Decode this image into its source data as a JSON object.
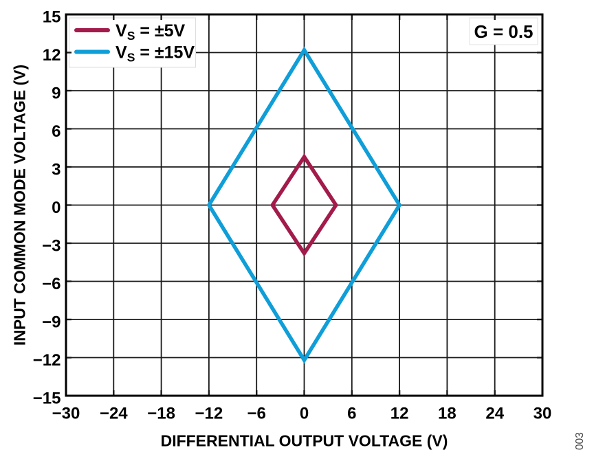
{
  "figure": {
    "background": "#ffffff",
    "figure_number": "003"
  },
  "chart_data": {
    "type": "line",
    "title": "",
    "xlabel": "DIFFERENTIAL OUTPUT VOLTAGE (V)",
    "ylabel": "INPUT COMMON MODE VOLTAGE (V)",
    "xlim": [
      -30,
      30
    ],
    "ylim": [
      -15,
      15
    ],
    "grid": true,
    "legend_position": "top-left",
    "annotation": "G = 0.5",
    "xticks": [
      {
        "v": -30,
        "label": "−30"
      },
      {
        "v": -24,
        "label": "−24"
      },
      {
        "v": -18,
        "label": "−18"
      },
      {
        "v": -12,
        "label": "−12"
      },
      {
        "v": -6,
        "label": "−6"
      },
      {
        "v": 0,
        "label": "0"
      },
      {
        "v": 6,
        "label": "6"
      },
      {
        "v": 12,
        "label": "12"
      },
      {
        "v": 18,
        "label": "18"
      },
      {
        "v": 24,
        "label": "24"
      },
      {
        "v": 30,
        "label": "30"
      }
    ],
    "yticks": [
      {
        "v": -15,
        "label": "−15"
      },
      {
        "v": -12,
        "label": "−12"
      },
      {
        "v": -9,
        "label": "−9"
      },
      {
        "v": -6,
        "label": "−6"
      },
      {
        "v": -3,
        "label": "−3"
      },
      {
        "v": 0,
        "label": "0"
      },
      {
        "v": 3,
        "label": "3"
      },
      {
        "v": 6,
        "label": "6"
      },
      {
        "v": 9,
        "label": "9"
      },
      {
        "v": 12,
        "label": "12"
      },
      {
        "v": 15,
        "label": "15"
      }
    ],
    "series": [
      {
        "name": "VS = ±5V",
        "label_parts": [
          {
            "text": "V"
          },
          {
            "text": "S",
            "sub": true
          },
          {
            "text": " = ±5V"
          }
        ],
        "color": "#a21b4b",
        "closed": true,
        "points": [
          [
            -4,
            0
          ],
          [
            0,
            3.8
          ],
          [
            4,
            0
          ],
          [
            0,
            -3.8
          ]
        ]
      },
      {
        "name": "VS = ±15V",
        "label_parts": [
          {
            "text": "V"
          },
          {
            "text": "S",
            "sub": true
          },
          {
            "text": " = ±15V"
          }
        ],
        "color": "#0f9ed8",
        "closed": true,
        "points": [
          [
            -12,
            0
          ],
          [
            0,
            12.2
          ],
          [
            12,
            0
          ],
          [
            0,
            -12.2
          ]
        ]
      }
    ],
    "style": {
      "grid_color": "#1a1a1a",
      "frame_color": "#000000",
      "text_color": "#000000",
      "legend_bg": "#ffffff",
      "legend_border": "#dedede",
      "annotation_bg": "#ffffff",
      "annotation_border": "#e2e2e2",
      "fig_number_color": "#404040"
    }
  }
}
